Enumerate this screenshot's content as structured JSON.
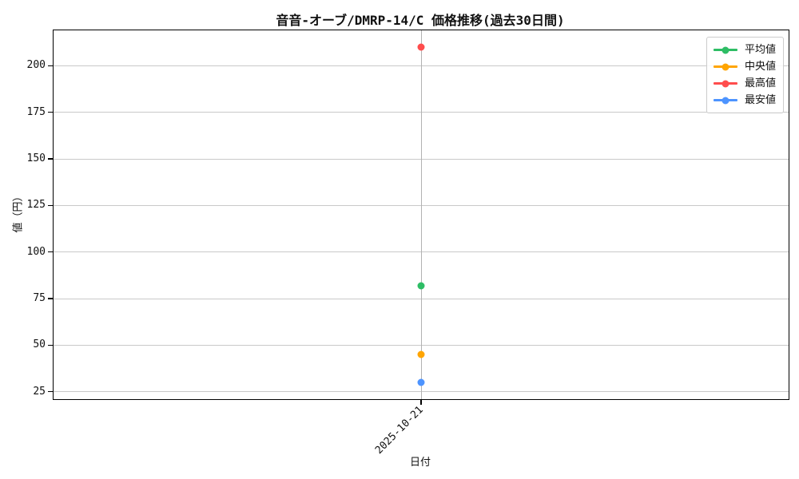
{
  "title": "音音-オーブ/DMRP-14/C 価格推移(過去30日間)",
  "chart_data": {
    "type": "line",
    "x": [
      "2025-10-21"
    ],
    "xlabel": "日付",
    "ylabel": "値（円）",
    "ylim": [
      21,
      219
    ],
    "yticks": [
      25,
      50,
      75,
      100,
      125,
      150,
      175,
      200
    ],
    "grid": true,
    "legend_position": "upper right",
    "series": [
      {
        "name": "平均値",
        "color": "#2ebd65",
        "values": [
          82
        ]
      },
      {
        "name": "中央値",
        "color": "#ffa502",
        "values": [
          45
        ]
      },
      {
        "name": "最高値",
        "color": "#ff4d4d",
        "values": [
          210
        ]
      },
      {
        "name": "最安値",
        "color": "#4d94ff",
        "values": [
          30
        ]
      }
    ]
  }
}
